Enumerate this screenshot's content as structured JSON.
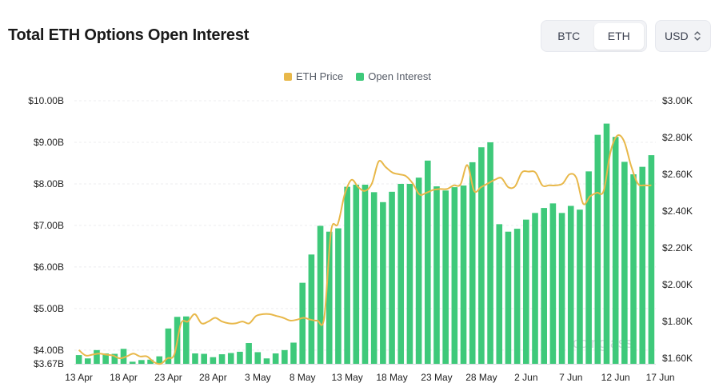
{
  "header": {
    "title": "Total ETH Options Open Interest",
    "asset_toggle": [
      {
        "label": "BTC",
        "active": false
      },
      {
        "label": "ETH",
        "active": true
      }
    ],
    "currency": "USD"
  },
  "legend": [
    {
      "label": "ETH Price",
      "color": "#e8b84a"
    },
    {
      "label": "Open Interest",
      "color": "#3ec97a"
    }
  ],
  "watermark": "coinglass",
  "chart_data": {
    "type": "bar+line",
    "x_tick_labels": [
      "13 Apr",
      "18 Apr",
      "23 Apr",
      "28 Apr",
      "3 May",
      "8 May",
      "13 May",
      "18 May",
      "23 May",
      "28 May",
      "2 Jun",
      "7 Jun",
      "12 Jun",
      "17 Jun"
    ],
    "left_axis": {
      "tick_labels": [
        "$3.67B",
        "$4.00B",
        "$5.00B",
        "$6.00B",
        "$7.00B",
        "$8.00B",
        "$9.00B",
        "$10.00B"
      ],
      "tick_values": [
        3.67,
        4,
        5,
        6,
        7,
        8,
        9,
        10
      ],
      "range": [
        3.67,
        10
      ],
      "unit": "USD billions"
    },
    "right_axis": {
      "tick_labels": [
        "$1.60K",
        "$1.80K",
        "$2.00K",
        "$2.20K",
        "$2.40K",
        "$2.60K",
        "$2.80K",
        "$3.00K"
      ],
      "tick_values": [
        1.6,
        1.8,
        2.0,
        2.2,
        2.4,
        2.6,
        2.8,
        3.0
      ],
      "range": [
        1.57,
        3.0
      ],
      "unit": "USD thousands"
    },
    "grid": true,
    "legend_position": "top-center",
    "series": [
      {
        "name": "Open Interest",
        "type": "bar",
        "axis": "left",
        "color": "#3ec97a",
        "values": [
          3.88,
          3.8,
          4.0,
          3.92,
          3.91,
          4.03,
          3.72,
          3.76,
          3.77,
          3.85,
          4.52,
          4.8,
          4.81,
          3.92,
          3.91,
          3.83,
          3.9,
          3.93,
          3.96,
          4.17,
          3.95,
          3.8,
          3.92,
          4.0,
          4.18,
          5.62,
          6.3,
          6.99,
          6.85,
          6.93,
          7.93,
          7.98,
          7.98,
          7.8,
          7.56,
          7.81,
          8.0,
          8.0,
          8.15,
          8.56,
          7.94,
          7.84,
          7.92,
          7.96,
          8.52,
          8.88,
          9.0,
          7.03,
          6.85,
          6.92,
          7.14,
          7.3,
          7.42,
          7.53,
          7.3,
          7.47,
          7.38,
          8.3,
          9.18,
          9.45,
          9.13,
          8.53,
          8.23,
          8.41,
          8.69
        ]
      },
      {
        "name": "ETH Price",
        "type": "line",
        "axis": "right",
        "color": "#e8b84a",
        "values": [
          1.645,
          1.615,
          1.62,
          1.625,
          1.62,
          1.615,
          1.6,
          1.61,
          1.625,
          1.61,
          1.61,
          1.58,
          1.57,
          1.6,
          1.62,
          1.79,
          1.8,
          1.84,
          1.79,
          1.8,
          1.82,
          1.8,
          1.79,
          1.79,
          1.8,
          1.79,
          1.83,
          1.84,
          1.84,
          1.83,
          1.82,
          1.805,
          1.81,
          1.82,
          1.81,
          1.805,
          1.82,
          2.29,
          2.33,
          2.49,
          2.57,
          2.53,
          2.51,
          2.55,
          2.67,
          2.64,
          2.61,
          2.6,
          2.59,
          2.55,
          2.49,
          2.5,
          2.515,
          2.52,
          2.52,
          2.54,
          2.545,
          2.65,
          2.51,
          2.53,
          2.55,
          2.57,
          2.58,
          2.53,
          2.535,
          2.61,
          2.615,
          2.61,
          2.54,
          2.54,
          2.54,
          2.55,
          2.6,
          2.58,
          2.44,
          2.48,
          2.5,
          2.51,
          2.72,
          2.81,
          2.78,
          2.65,
          2.55,
          2.54,
          2.54
        ]
      }
    ]
  }
}
